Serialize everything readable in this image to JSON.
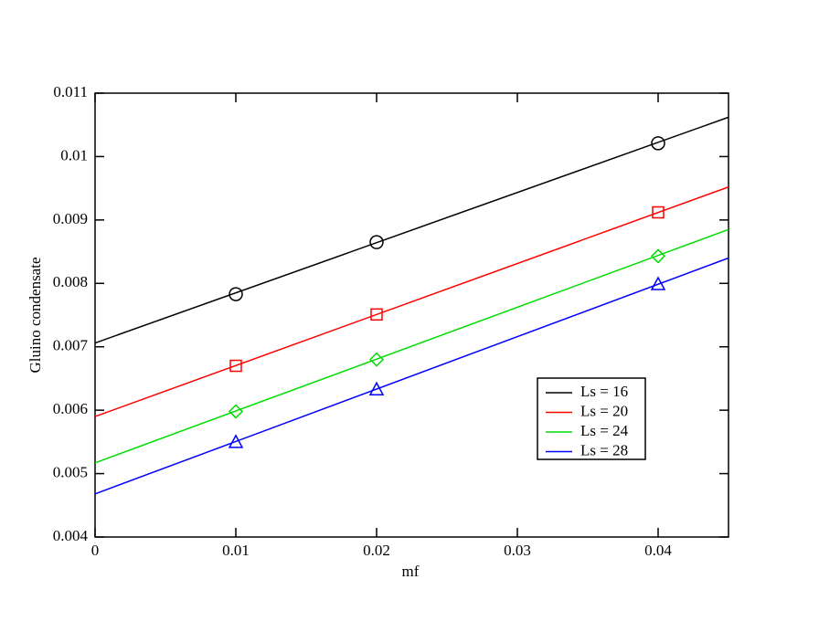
{
  "chart_data": {
    "type": "line",
    "xlabel": "mf",
    "ylabel": "Gluino condensate",
    "xlim": [
      0,
      0.045
    ],
    "ylim": [
      0.004,
      0.011
    ],
    "xticks": [
      0,
      0.01,
      0.02,
      0.03,
      0.04
    ],
    "yticks": [
      0.004,
      0.005,
      0.006,
      0.007,
      0.008,
      0.009,
      0.01,
      0.011
    ],
    "legend": "lower right",
    "series": [
      {
        "name": "Ls = 16",
        "color": "#000000",
        "x": [
          0,
          0.045
        ],
        "values": [
          0.00706,
          0.01062
        ]
      },
      {
        "name": "Ls = 20",
        "color": "#ff0000",
        "x": [
          0,
          0.045
        ],
        "values": [
          0.0059,
          0.00952
        ]
      },
      {
        "name": "Ls = 24",
        "color": "#00dd00",
        "x": [
          0,
          0.045
        ],
        "values": [
          0.00517,
          0.00885
        ]
      },
      {
        "name": "Ls = 28",
        "color": "#0000ff",
        "x": [
          0,
          0.045
        ],
        "values": [
          0.00468,
          0.0084
        ]
      }
    ],
    "points": [
      {
        "color": "#000000",
        "marker": "circle",
        "x": [
          0.01,
          0.02,
          0.04
        ],
        "values": [
          0.00783,
          0.00865,
          0.01021
        ]
      },
      {
        "color": "#ff0000",
        "marker": "square",
        "x": [
          0.01,
          0.02,
          0.04
        ],
        "values": [
          0.0067,
          0.00751,
          0.00912
        ]
      },
      {
        "color": "#00dd00",
        "marker": "diamond",
        "x": [
          0.01,
          0.02,
          0.04
        ],
        "values": [
          0.00598,
          0.0068,
          0.00843
        ]
      },
      {
        "color": "#0000ff",
        "marker": "triangle",
        "x": [
          0.01,
          0.02,
          0.04
        ],
        "values": [
          0.0055,
          0.00633,
          0.00799
        ]
      }
    ]
  }
}
